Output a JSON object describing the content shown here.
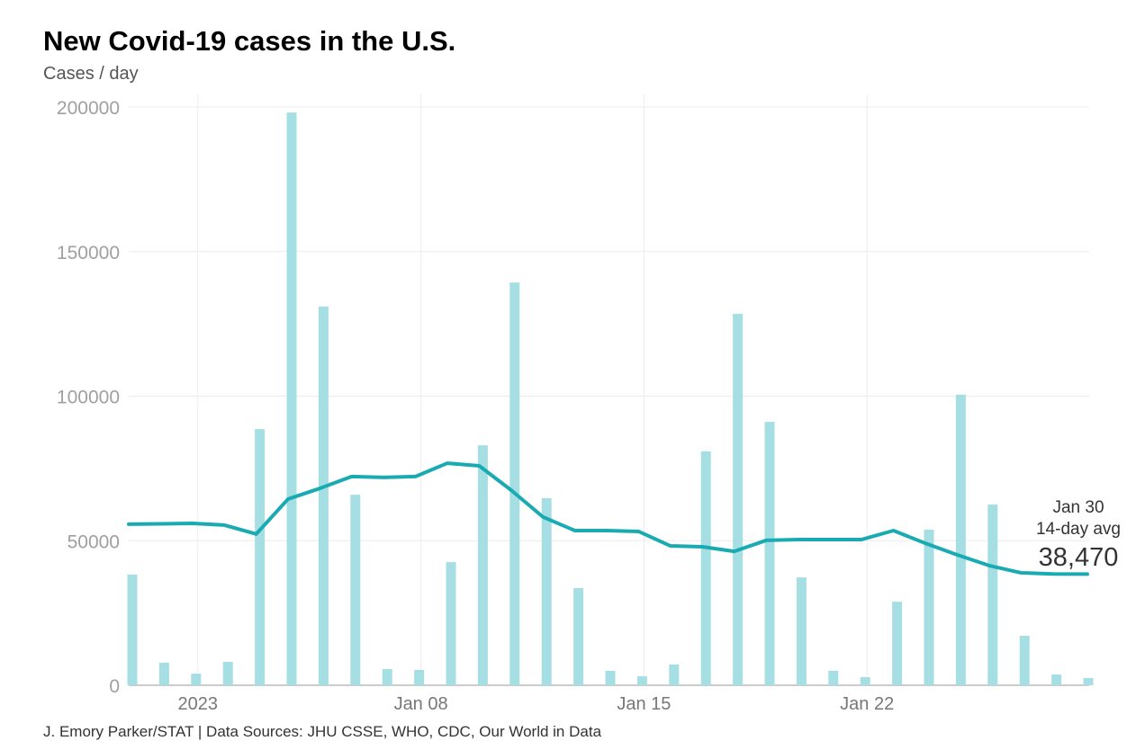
{
  "title": "New Covid-19 cases in the U.S.",
  "subtitle": "Cases / day",
  "footer": "J. Emory Parker/STAT | Data Sources: JHU CSSE, WHO, CDC, Our World in Data",
  "colors": {
    "bars": "#a6dfe3",
    "line": "#1aabb2",
    "grid": "#ececec"
  },
  "chart_data": {
    "type": "bar+line",
    "ylabel": "Cases / day",
    "ylim": [
      0,
      200000
    ],
    "yticks": [
      "0",
      "50000",
      "100000",
      "150000",
      "200000"
    ],
    "yticks_values": [
      0,
      50000,
      100000,
      150000,
      200000
    ],
    "xticks": [
      {
        "label": "2023",
        "date": "2023-01-01"
      },
      {
        "label": "Jan 08",
        "date": "2023-01-08"
      },
      {
        "label": "Jan 15",
        "date": "2023-01-15"
      },
      {
        "label": "Jan 22",
        "date": "2023-01-22"
      }
    ],
    "grid": true,
    "dates": [
      "2022-12-30",
      "2022-12-31",
      "2023-01-01",
      "2023-01-02",
      "2023-01-03",
      "2023-01-04",
      "2023-01-05",
      "2023-01-06",
      "2023-01-07",
      "2023-01-08",
      "2023-01-09",
      "2023-01-10",
      "2023-01-11",
      "2023-01-12",
      "2023-01-13",
      "2023-01-14",
      "2023-01-15",
      "2023-01-16",
      "2023-01-17",
      "2023-01-18",
      "2023-01-19",
      "2023-01-20",
      "2023-01-21",
      "2023-01-22",
      "2023-01-23",
      "2023-01-24",
      "2023-01-25",
      "2023-01-26",
      "2023-01-27",
      "2023-01-28",
      "2023-01-29"
    ],
    "daily_cases": [
      38300,
      7800,
      4000,
      8100,
      88600,
      198100,
      131000,
      65900,
      5600,
      5300,
      42600,
      83000,
      139300,
      64700,
      33600,
      5000,
      3100,
      7200,
      80900,
      128500,
      91100,
      37300,
      5000,
      2800,
      28900,
      53800,
      100500,
      62500,
      17100,
      3700,
      2500
    ],
    "avg_14day": [
      55700,
      55850,
      56000,
      55400,
      52300,
      64400,
      68100,
      72200,
      71900,
      72200,
      76800,
      75900,
      67500,
      58200,
      53500,
      53500,
      53200,
      48200,
      47900,
      46300,
      50100,
      50400,
      50400,
      50400,
      53500,
      49100,
      45100,
      41400,
      38900,
      38500,
      38470
    ],
    "annotation": {
      "date": "Jan 30",
      "label": "14-day avg",
      "value": "38,470"
    }
  }
}
